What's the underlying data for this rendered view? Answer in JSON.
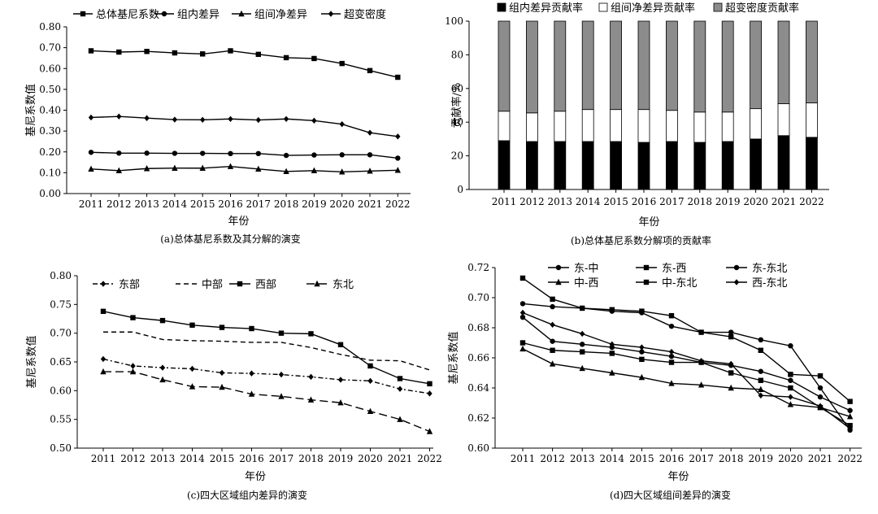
{
  "years": [
    "2011",
    "2012",
    "2013",
    "2014",
    "2015",
    "2016",
    "2017",
    "2018",
    "2019",
    "2020",
    "2021",
    "2022"
  ],
  "chart_data": [
    {
      "id": "a",
      "type": "line",
      "caption": "(a)总体基尼系数及其分解的演变",
      "xlabel": "年份",
      "ylabel": "基尼系数值",
      "ylim": [
        0,
        0.8
      ],
      "yticks": [
        "0.00",
        "0.10",
        "0.20",
        "0.30",
        "0.40",
        "0.50",
        "0.60",
        "0.70",
        "0.80"
      ],
      "legend_position": "top",
      "series": [
        {
          "name": "总体基尼系数",
          "marker": "square",
          "dash": "solid",
          "values": [
            0.685,
            0.679,
            0.682,
            0.675,
            0.67,
            0.685,
            0.668,
            0.652,
            0.648,
            0.624,
            0.59,
            0.558
          ]
        },
        {
          "name": "组内差异",
          "marker": "circle",
          "dash": "solid",
          "values": [
            0.198,
            0.194,
            0.194,
            0.193,
            0.193,
            0.192,
            0.192,
            0.183,
            0.185,
            0.186,
            0.186,
            0.17
          ]
        },
        {
          "name": "组间净差异",
          "marker": "triangle",
          "dash": "solid",
          "values": [
            0.118,
            0.11,
            0.12,
            0.122,
            0.122,
            0.13,
            0.118,
            0.106,
            0.11,
            0.104,
            0.108,
            0.112
          ]
        },
        {
          "name": "超变密度",
          "marker": "diamond",
          "dash": "solid",
          "values": [
            0.365,
            0.37,
            0.362,
            0.355,
            0.354,
            0.358,
            0.353,
            0.358,
            0.35,
            0.333,
            0.292,
            0.274
          ]
        }
      ]
    },
    {
      "id": "b",
      "type": "stacked-bar",
      "caption": "(b)总体基尼系数分解项的贡献率",
      "xlabel": "年份",
      "ylabel": "贡献率/%",
      "ylim": [
        0,
        100
      ],
      "yticks": [
        "0",
        "20",
        "40",
        "60",
        "80",
        "100"
      ],
      "legend_position": "top",
      "series": [
        {
          "name": "组内差异贡献率",
          "color": "#000000",
          "values": [
            29,
            28.5,
            28.5,
            28.5,
            28.5,
            28,
            28.5,
            28,
            28.5,
            30,
            32,
            31
          ]
        },
        {
          "name": "组间净差异贡献率",
          "color": "#ffffff",
          "values": [
            17.5,
            17,
            18,
            19,
            19,
            19.5,
            18.5,
            18,
            17.5,
            18,
            19,
            20.5
          ]
        },
        {
          "name": "超变密度贡献率",
          "color": "#8c8c8c",
          "values": [
            53.5,
            54.5,
            53.5,
            52.5,
            52.5,
            52.5,
            53,
            54,
            54,
            52,
            49,
            48.5
          ]
        }
      ]
    },
    {
      "id": "c",
      "type": "line",
      "caption": "(c)四大区域组内差异的演变",
      "xlabel": "年份",
      "ylabel": "基尼系数值",
      "ylim": [
        0.5,
        0.8
      ],
      "yticks": [
        "0.50",
        "0.55",
        "0.60",
        "0.65",
        "0.70",
        "0.75",
        "0.80"
      ],
      "legend_position": "top",
      "series": [
        {
          "name": "东部",
          "marker": "diamond",
          "dash": "dashdot",
          "values": [
            0.655,
            0.643,
            0.64,
            0.638,
            0.631,
            0.63,
            0.628,
            0.624,
            0.619,
            0.617,
            0.603,
            0.595
          ]
        },
        {
          "name": "中部",
          "marker": "none",
          "dash": "dash",
          "values": [
            0.702,
            0.702,
            0.689,
            0.687,
            0.686,
            0.684,
            0.684,
            0.675,
            0.663,
            0.653,
            0.652,
            0.636
          ]
        },
        {
          "name": "西部",
          "marker": "square",
          "dash": "solid",
          "values": [
            0.738,
            0.727,
            0.722,
            0.714,
            0.71,
            0.708,
            0.7,
            0.699,
            0.68,
            0.643,
            0.621,
            0.612
          ]
        },
        {
          "name": "东北",
          "marker": "triangle",
          "dash": "longdash",
          "values": [
            0.633,
            0.633,
            0.619,
            0.607,
            0.606,
            0.594,
            0.59,
            0.584,
            0.579,
            0.564,
            0.55,
            0.529
          ]
        }
      ]
    },
    {
      "id": "d",
      "type": "line",
      "caption": "(d)四大区域组间差异的演变",
      "xlabel": "年份",
      "ylabel": "基尼系数值",
      "ylim": [
        0.6,
        0.72
      ],
      "yticks": [
        "0.60",
        "0.62",
        "0.64",
        "0.66",
        "0.68",
        "0.70",
        "0.72"
      ],
      "legend_position": "top",
      "series": [
        {
          "name": "东-中",
          "marker": "circle",
          "dash": "solid",
          "values": [
            0.687,
            0.671,
            0.669,
            0.667,
            0.664,
            0.661,
            0.657,
            0.655,
            0.651,
            0.645,
            0.634,
            0.625
          ]
        },
        {
          "name": "东-西",
          "marker": "square",
          "dash": "solid",
          "values": [
            0.713,
            0.699,
            0.693,
            0.692,
            0.691,
            0.688,
            0.677,
            0.674,
            0.665,
            0.649,
            0.648,
            0.631
          ]
        },
        {
          "name": "东-东北",
          "marker": "circle",
          "dash": "solid",
          "values": [
            0.696,
            0.694,
            0.693,
            0.691,
            0.69,
            0.681,
            0.677,
            0.677,
            0.672,
            0.668,
            0.64,
            0.612
          ]
        },
        {
          "name": "中-西",
          "marker": "triangle",
          "dash": "solid",
          "values": [
            0.666,
            0.656,
            0.653,
            0.65,
            0.647,
            0.643,
            0.642,
            0.64,
            0.639,
            0.629,
            0.627,
            0.621
          ]
        },
        {
          "name": "中-东北",
          "marker": "square",
          "dash": "solid",
          "values": [
            0.67,
            0.665,
            0.664,
            0.663,
            0.659,
            0.657,
            0.657,
            0.65,
            0.645,
            0.64,
            0.627,
            0.615
          ]
        },
        {
          "name": "西-东北",
          "marker": "diamond",
          "dash": "solid",
          "values": [
            0.69,
            0.682,
            0.676,
            0.669,
            0.667,
            0.664,
            0.658,
            0.656,
            0.635,
            0.634,
            0.628,
            0.613
          ]
        }
      ]
    }
  ]
}
